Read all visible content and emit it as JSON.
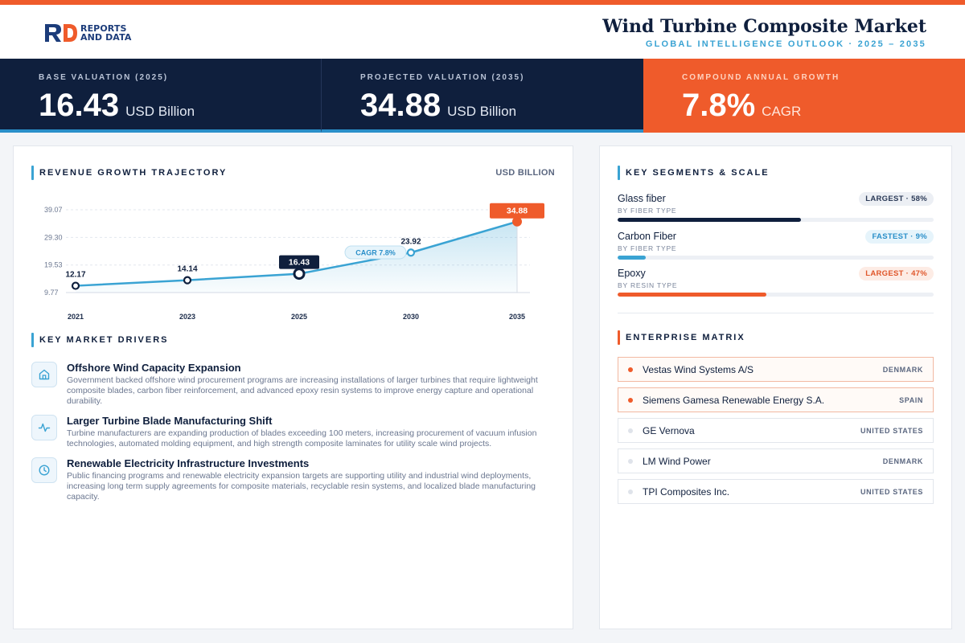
{
  "brand": {
    "line1": "REPORTS",
    "line2": "AND DATA",
    "mark_primary": "#1c3c7a",
    "mark_accent": "#ef5b2b"
  },
  "header": {
    "title": "Wind Turbine Composite Market",
    "subtitle": "GLOBAL INTELLIGENCE OUTLOOK  ·  2025 – 2035"
  },
  "stats": [
    {
      "label": "BASE VALUATION (2025)",
      "value": "16.43",
      "unit": "USD Billion"
    },
    {
      "label": "PROJECTED VALUATION (2035)",
      "value": "34.88",
      "unit": "USD Billion"
    },
    {
      "label": "COMPOUND ANNUAL GROWTH",
      "value": "7.8%",
      "unit": "CAGR"
    }
  ],
  "revenue": {
    "title": "REVENUE GROWTH TRAJECTORY",
    "unit": "USD BILLION",
    "cagr_label": "CAGR 7.8%"
  },
  "chart_data": {
    "type": "line",
    "title": "REVENUE GROWTH TRAJECTORY",
    "ylabel": "USD BILLION",
    "xlabel": "",
    "categories": [
      "2021",
      "2023",
      "2025",
      "2030",
      "2035"
    ],
    "values": [
      12.17,
      14.14,
      16.43,
      23.92,
      34.88
    ],
    "labels": [
      "12.17",
      "14.14",
      "16.43",
      "23.92",
      "34.88"
    ],
    "yticks": [
      "39.07",
      "29.30",
      "19.53",
      "9.77"
    ],
    "ytick_values": [
      39.07,
      29.3,
      19.53,
      9.77
    ],
    "ylim": [
      9.77,
      39.07
    ],
    "grid": true,
    "line_color": "#3aa3d3",
    "highlight_color": "#ef5b2b",
    "annotation": "CAGR 7.8%"
  },
  "drivers": {
    "title": "KEY MARKET DRIVERS",
    "items": [
      {
        "icon": "building-icon",
        "title": "Offshore Wind Capacity Expansion",
        "desc": "Government backed offshore wind procurement programs are increasing installations of larger turbines that require lightweight composite blades, carbon fiber reinforcement, and advanced epoxy resin systems to improve energy capture and operational durability."
      },
      {
        "icon": "activity-icon",
        "title": "Larger Turbine Blade Manufacturing Shift",
        "desc": "Turbine manufacturers are expanding production of blades exceeding 100 meters, increasing procurement of vacuum infusion technologies, automated molding equipment, and high strength composite laminates for utility scale wind projects."
      },
      {
        "icon": "clock-icon",
        "title": "Renewable Electricity Infrastructure Investments",
        "desc": "Public financing programs and renewable electricity expansion targets are supporting utility and industrial wind deployments, increasing long term supply agreements for composite materials, recyclable resin systems, and localized blade manufacturing capacity."
      }
    ]
  },
  "segments": {
    "title": "KEY SEGMENTS & SCALE",
    "items": [
      {
        "name": "Glass fiber",
        "sub": "BY FIBER TYPE",
        "badge": "LARGEST · 58%",
        "share": 0.58,
        "color": "#0f1f3d",
        "badge_bg": "#eceff4",
        "badge_fg": "#2b3a57"
      },
      {
        "name": "Carbon Fiber",
        "sub": "BY FIBER TYPE",
        "badge": "FASTEST · 9%",
        "share": 0.09,
        "color": "#3aa3d3",
        "badge_bg": "#e6f4fb",
        "badge_fg": "#2a8fc9"
      },
      {
        "name": "Epoxy",
        "sub": "BY RESIN TYPE",
        "badge": "LARGEST · 47%",
        "share": 0.47,
        "color": "#ef5b2b",
        "badge_bg": "#fdece5",
        "badge_fg": "#e0562a"
      }
    ]
  },
  "enterprise": {
    "title": "ENTERPRISE MATRIX",
    "items": [
      {
        "name": "Vestas Wind Systems A/S",
        "country": "DENMARK",
        "highlight": true
      },
      {
        "name": "Siemens Gamesa Renewable Energy S.A.",
        "country": "SPAIN",
        "highlight": true
      },
      {
        "name": "GE Vernova",
        "country": "UNITED STATES",
        "highlight": false
      },
      {
        "name": "LM Wind Power",
        "country": "DENMARK",
        "highlight": false
      },
      {
        "name": "TPI Composites Inc.",
        "country": "UNITED STATES",
        "highlight": false
      }
    ]
  }
}
